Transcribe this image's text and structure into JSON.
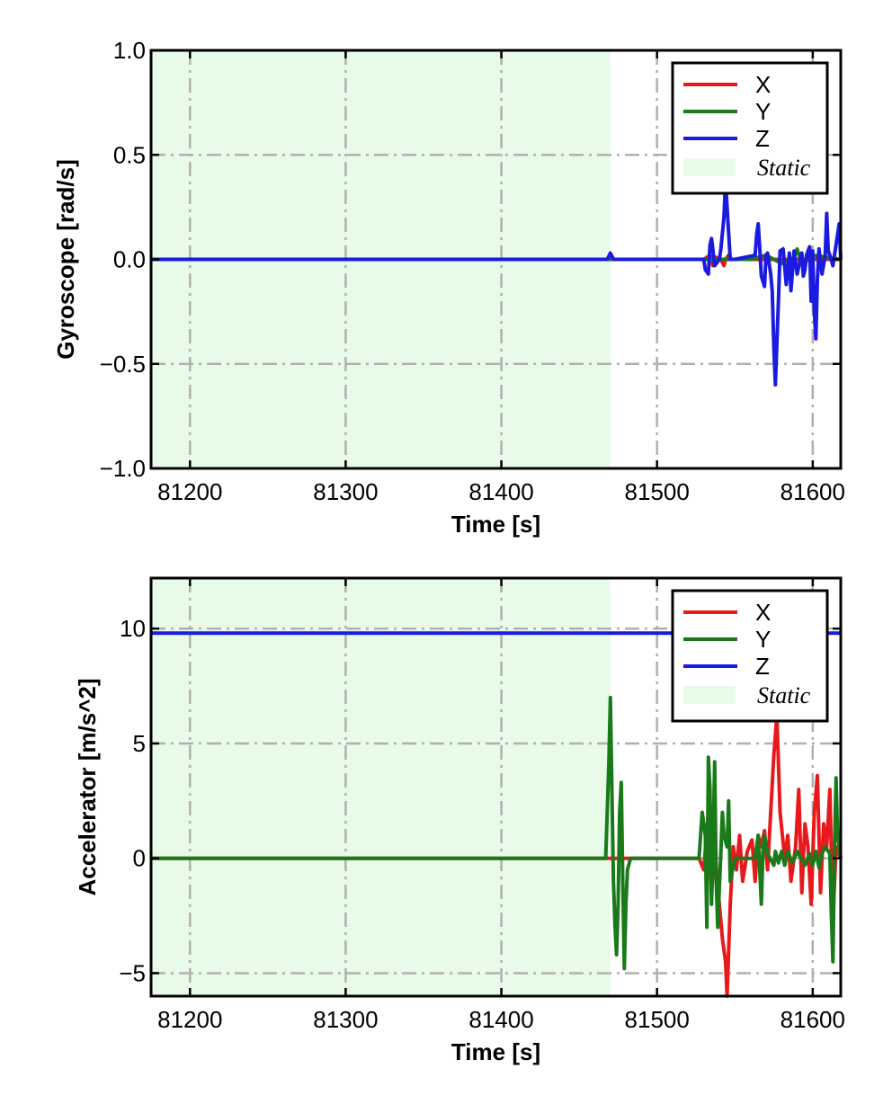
{
  "chart_data": [
    {
      "type": "line",
      "title": "",
      "xlabel": "Time [s]",
      "ylabel": "Gyroscope [rad/s]",
      "xlim": [
        81175,
        81618
      ],
      "ylim": [
        -1.0,
        1.0
      ],
      "xticks": [
        81200,
        81300,
        81400,
        81500,
        81600
      ],
      "xtick_labels": [
        "81200",
        "81300",
        "81400",
        "81500",
        "81600"
      ],
      "yticks": [
        1.0,
        0.5,
        0.0,
        -0.5,
        -1.0
      ],
      "ytick_labels": [
        "1.0",
        "0.5",
        "0.0",
        "−0.5",
        "−1.0"
      ],
      "grid": true,
      "legend": "top-right",
      "legend_entries": [
        "X",
        "Y",
        "Z",
        "Static"
      ],
      "static_region": [
        81175,
        81470
      ],
      "colors": {
        "X": "#e8191b",
        "Y": "#1a7a1a",
        "Z": "#1a1ae0",
        "static": "#e8fbe8"
      },
      "series": [
        {
          "name": "X",
          "x": [
            81175,
            81530,
            81534,
            81536,
            81538,
            81541,
            81543,
            81544,
            81546,
            81548,
            81618
          ],
          "y": [
            0,
            0,
            0.02,
            -0.03,
            0.01,
            0,
            -0.03,
            0,
            0.02,
            0,
            0
          ]
        },
        {
          "name": "Y",
          "x": [
            81175,
            81560,
            81570,
            81580,
            81588,
            81590,
            81592,
            81594,
            81600,
            81618
          ],
          "y": [
            0,
            0,
            0.02,
            -0.02,
            0.01,
            0.05,
            0,
            -0.02,
            0.02,
            0
          ]
        },
        {
          "name": "Z",
          "x": [
            81175,
            81468,
            81470,
            81472,
            81530,
            81531,
            81533,
            81534,
            81535,
            81536,
            81537,
            81540,
            81541,
            81543,
            81544,
            81545,
            81547,
            81550,
            81563,
            81564,
            81565,
            81566,
            81567,
            81569,
            81570,
            81571,
            81573,
            81574,
            81575,
            81576,
            81578,
            81579,
            81581,
            81583,
            81585,
            81586,
            81588,
            81590,
            81593,
            81594,
            81595,
            81596,
            81598,
            81599,
            81600,
            81601,
            81602,
            81603,
            81604,
            81606,
            81608,
            81609,
            81610,
            81611,
            81613,
            81615,
            81617,
            81618
          ],
          "y": [
            0,
            0,
            0.03,
            0,
            0,
            -0.05,
            -0.07,
            0.07,
            0.1,
            0.04,
            -0.03,
            0,
            0.05,
            0.2,
            0.38,
            0.25,
            0,
            0,
            0.02,
            0.12,
            0.17,
            0.05,
            -0.08,
            -0.13,
            0.02,
            0.03,
            -0.07,
            -0.15,
            -0.42,
            -0.6,
            -0.2,
            0.04,
            0.05,
            -0.12,
            0.03,
            -0.15,
            0.04,
            -0.07,
            0.03,
            -0.08,
            -0.05,
            0.02,
            0.06,
            -0.2,
            0.04,
            -0.25,
            -0.38,
            -0.1,
            0.05,
            -0.07,
            0.02,
            0.22,
            0.04,
            0.02,
            -0.03,
            0.07,
            0.17,
            0
          ]
        }
      ]
    },
    {
      "type": "line",
      "title": "",
      "xlabel": "Time [s]",
      "ylabel": "Accelerator [m/s^2]",
      "xlim": [
        81175,
        81618
      ],
      "ylim": [
        -6,
        12.2
      ],
      "xticks": [
        81200,
        81300,
        81400,
        81500,
        81600
      ],
      "xtick_labels": [
        "81200",
        "81300",
        "81400",
        "81500",
        "81600"
      ],
      "yticks": [
        10,
        5,
        0,
        -5
      ],
      "ytick_labels": [
        "10",
        "5",
        "0",
        "−5"
      ],
      "grid": true,
      "legend": "top-right",
      "legend_entries": [
        "X",
        "Y",
        "Z",
        "Static"
      ],
      "static_region": [
        81175,
        81470
      ],
      "colors": {
        "X": "#e8191b",
        "Y": "#1a7a1a",
        "Z": "#1a1ae0",
        "static": "#e8fbe8"
      },
      "series": [
        {
          "name": "X",
          "x": [
            81175,
            81527,
            81530,
            81533,
            81535,
            81537,
            81540,
            81542,
            81544,
            81545,
            81547,
            81549,
            81551,
            81553,
            81555,
            81558,
            81561,
            81563,
            81565,
            81567,
            81569,
            81571,
            81573,
            81575,
            81577,
            81579,
            81582,
            81584,
            81586,
            81589,
            81591,
            81593,
            81595,
            81597,
            81599,
            81601,
            81603,
            81605,
            81607,
            81609,
            81611,
            81613,
            81615,
            81618
          ],
          "y": [
            0,
            0,
            -0.5,
            2,
            -1.5,
            0.5,
            -2,
            -3.5,
            -4.5,
            -6,
            -2,
            0.5,
            -0.5,
            1,
            -1,
            0.3,
            0.8,
            -1,
            1,
            0.5,
            1.2,
            -0.5,
            2,
            4.5,
            6.2,
            2,
            0,
            1,
            -1,
            0.5,
            3,
            -1.5,
            1.5,
            0.5,
            -2,
            2,
            3.6,
            -1.5,
            1.5,
            0.5,
            3,
            -2.7,
            0.5,
            0
          ]
        },
        {
          "name": "Y",
          "x": [
            81175,
            81467,
            81469,
            81470,
            81471,
            81472,
            81473,
            81474,
            81475,
            81476,
            81477,
            81478,
            81479,
            81480,
            81481,
            81483,
            81527,
            81529,
            81531,
            81532,
            81533,
            81534,
            81535,
            81536,
            81537,
            81538,
            81539,
            81541,
            81542,
            81543,
            81545,
            81546,
            81547,
            81550,
            81563,
            81564,
            81565,
            81567,
            81568,
            81569,
            81571,
            81575,
            81576,
            81578,
            81580,
            81582,
            81584,
            81587,
            81590,
            81595,
            81598,
            81600,
            81602,
            81604,
            81606,
            81608,
            81611,
            81612,
            81613,
            81614,
            81615,
            81616,
            81618
          ],
          "y": [
            0,
            0,
            4,
            7,
            3,
            -1,
            -3,
            -4.2,
            -2,
            2,
            3.3,
            -1,
            -4.8,
            -2,
            -0.5,
            0,
            0,
            2,
            1,
            -3,
            4.4,
            3,
            -2,
            0.5,
            4.2,
            -1,
            -3,
            0.3,
            2,
            1,
            0.5,
            2.5,
            -1,
            0,
            0,
            0.5,
            1,
            -2,
            0.2,
            1,
            0.2,
            -0.3,
            0.3,
            -0.2,
            0.3,
            -0.3,
            0.3,
            -0.2,
            0.3,
            -0.3,
            0.2,
            -0.3,
            0.3,
            -0.4,
            0.2,
            0.5,
            0.2,
            -2.5,
            -4.5,
            0.5,
            3.5,
            1,
            0
          ]
        },
        {
          "name": "Z",
          "x": [
            81175,
            81618
          ],
          "y": [
            9.8,
            9.8
          ]
        }
      ]
    }
  ]
}
